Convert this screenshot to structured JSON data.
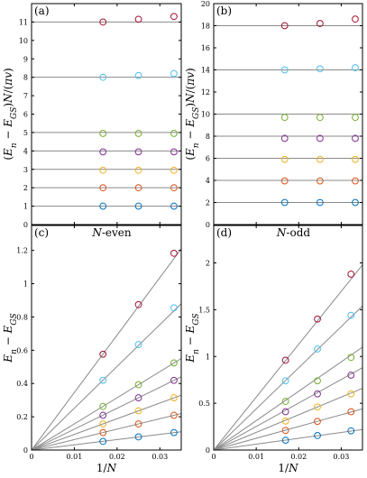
{
  "figure": {
    "background": "#ffffff"
  },
  "chart_data": [
    {
      "panel": "(a)",
      "type": "scatter",
      "title": "",
      "ylabel": "(E_n − E_GS)N/(πv)",
      "xlabel": "",
      "xlim": [
        0,
        0.035
      ],
      "ylim": [
        0,
        12
      ],
      "xticks": [],
      "yticks": [
        0,
        1,
        2,
        3,
        4,
        5,
        6,
        7,
        8,
        9,
        10,
        11
      ],
      "reference_lines": [
        1,
        2,
        3,
        4,
        5,
        8,
        11
      ],
      "x": [
        0.0167,
        0.025,
        0.0333
      ],
      "series": [
        {
          "color": "#0072bd",
          "values": [
            1.0,
            1.0,
            1.0
          ]
        },
        {
          "color": "#d95319",
          "values": [
            2.0,
            2.0,
            2.0
          ]
        },
        {
          "color": "#edb120",
          "values": [
            2.95,
            2.95,
            2.95
          ]
        },
        {
          "color": "#7e2f8e",
          "values": [
            3.95,
            3.95,
            3.95
          ]
        },
        {
          "color": "#77ac30",
          "values": [
            4.95,
            4.95,
            4.95
          ]
        },
        {
          "color": "#4dbeee",
          "values": [
            8.0,
            8.1,
            8.2
          ]
        },
        {
          "color": "#a2142f",
          "values": [
            11.0,
            11.15,
            11.3
          ]
        }
      ]
    },
    {
      "panel": "(b)",
      "type": "scatter",
      "title": "",
      "ylabel": "(E_n − E_GS)N/(πv)",
      "xlabel": "",
      "xlim": [
        0,
        0.035
      ],
      "ylim": [
        0,
        20
      ],
      "xticks": [],
      "yticks": [
        0,
        2,
        4,
        6,
        8,
        10,
        12,
        14,
        16,
        18,
        20
      ],
      "reference_lines": [
        2,
        4,
        6,
        8,
        10,
        14,
        18
      ],
      "x": [
        0.0167,
        0.025,
        0.0333
      ],
      "series": [
        {
          "color": "#0072bd",
          "values": [
            2.0,
            2.0,
            2.0
          ]
        },
        {
          "color": "#d95319",
          "values": [
            3.95,
            3.95,
            3.95
          ]
        },
        {
          "color": "#edb120",
          "values": [
            5.9,
            5.9,
            5.9
          ]
        },
        {
          "color": "#7e2f8e",
          "values": [
            7.8,
            7.8,
            7.8
          ]
        },
        {
          "color": "#77ac30",
          "values": [
            9.7,
            9.7,
            9.7
          ]
        },
        {
          "color": "#4dbeee",
          "values": [
            14.0,
            14.1,
            14.2
          ]
        },
        {
          "color": "#a2142f",
          "values": [
            18.0,
            18.2,
            18.6
          ]
        }
      ]
    },
    {
      "panel": "(c)",
      "type": "scatter",
      "title": "N-even",
      "ylabel": "E_n − E_GS",
      "xlabel": "1/N",
      "xlim": [
        0,
        0.035
      ],
      "ylim": [
        0,
        1.35
      ],
      "xticks": [
        0,
        0.01,
        0.02,
        0.03
      ],
      "xtick_labels": [
        "0",
        "0.01",
        "0.02",
        "0.03"
      ],
      "yticks": [
        0,
        0.2,
        0.4,
        0.6,
        0.8,
        1.0,
        1.2
      ],
      "ytick_labels": [
        "0",
        "0.2",
        "0.4",
        "0.6",
        "0.8",
        "1",
        "1.2"
      ],
      "fit_slopes": [
        3.1416,
        6.2832,
        9.4248,
        12.5664,
        15.708,
        25.1327,
        34.5575
      ],
      "x": [
        0.0167,
        0.025,
        0.0333
      ],
      "series": [
        {
          "color": "#0072bd",
          "values": [
            0.052,
            0.079,
            0.105
          ]
        },
        {
          "color": "#d95319",
          "values": [
            0.105,
            0.157,
            0.209
          ]
        },
        {
          "color": "#edb120",
          "values": [
            0.157,
            0.236,
            0.314
          ]
        },
        {
          "color": "#7e2f8e",
          "values": [
            0.209,
            0.314,
            0.419
          ]
        },
        {
          "color": "#77ac30",
          "values": [
            0.262,
            0.393,
            0.524
          ]
        },
        {
          "color": "#4dbeee",
          "values": [
            0.419,
            0.634,
            0.855
          ]
        },
        {
          "color": "#a2142f",
          "values": [
            0.576,
            0.874,
            1.183
          ]
        }
      ]
    },
    {
      "panel": "(d)",
      "type": "scatter",
      "title": "N-odd",
      "ylabel": "E_n − E_GS",
      "xlabel": "1/N",
      "xlim": [
        0,
        0.035
      ],
      "ylim": [
        0,
        2.4
      ],
      "xticks": [
        0,
        0.01,
        0.02,
        0.03
      ],
      "xtick_labels": [
        "0",
        "0.01",
        "0.02",
        "0.03"
      ],
      "yticks": [
        0,
        0.5,
        1.0,
        1.5,
        2.0
      ],
      "ytick_labels": [
        "0",
        "0.5",
        "1",
        "1.5",
        "2"
      ],
      "fit_slopes": [
        6.2832,
        12.5664,
        18.8496,
        25.1327,
        31.4159,
        43.9823,
        56.5487
      ],
      "x": [
        0.0169,
        0.0244,
        0.0323
      ],
      "series": [
        {
          "color": "#0072bd",
          "values": [
            0.105,
            0.155,
            0.205
          ]
        },
        {
          "color": "#d95319",
          "values": [
            0.21,
            0.306,
            0.41
          ]
        },
        {
          "color": "#edb120",
          "values": [
            0.31,
            0.46,
            0.6
          ]
        },
        {
          "color": "#7e2f8e",
          "values": [
            0.41,
            0.6,
            0.8
          ]
        },
        {
          "color": "#77ac30",
          "values": [
            0.52,
            0.74,
            0.99
          ]
        },
        {
          "color": "#4dbeee",
          "values": [
            0.74,
            1.08,
            1.44
          ]
        },
        {
          "color": "#a2142f",
          "values": [
            0.96,
            1.4,
            1.88
          ]
        }
      ]
    }
  ]
}
